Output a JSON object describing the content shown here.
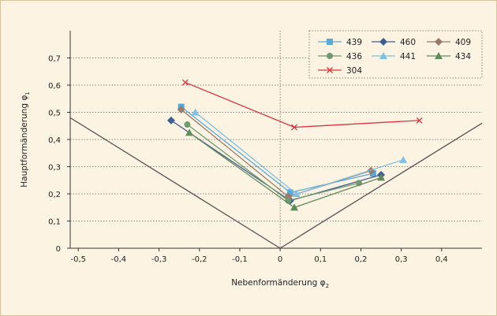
{
  "chart_data": {
    "type": "scatter",
    "title": "",
    "xlabel": {
      "main": "Nebenformänderung φ",
      "sub": "2"
    },
    "ylabel": {
      "main": "Hauptformänderung φ",
      "sub": "1"
    },
    "xlim": [
      -0.52,
      0.5
    ],
    "ylim": [
      0,
      0.8
    ],
    "x_ticks": [
      -0.5,
      -0.4,
      -0.3,
      -0.2,
      -0.1,
      0,
      0.1,
      0.2,
      0.3,
      0.4
    ],
    "x_tick_labels": [
      "-0,5",
      "-0,4",
      "-0,3",
      "-0,2",
      "-0,1",
      "0",
      "0,1",
      "0,2",
      "0,3",
      "0,4"
    ],
    "y_ticks": [
      0,
      0.1,
      0.2,
      0.3,
      0.4,
      0.5,
      0.6,
      0.7
    ],
    "y_tick_labels": [
      "0",
      "0,1",
      "0,2",
      "0,3",
      "0,4",
      "0,5",
      "0,6",
      "0,7"
    ],
    "grid": {
      "horizontal": true,
      "style": "dotted"
    },
    "legend_position": "top-right",
    "reference_lines": [
      {
        "points": [
          [
            -0.52,
            0.48
          ],
          [
            0,
            0
          ],
          [
            0.5,
            0.46
          ]
        ],
        "color": "#555555"
      }
    ],
    "series": [
      {
        "name": "439",
        "color": "#5aa9d6",
        "marker": "square",
        "points": [
          [
            -0.245,
            0.52
          ],
          [
            0.025,
            0.205
          ],
          [
            0.23,
            0.275
          ]
        ]
      },
      {
        "name": "460",
        "color": "#3f5f8f",
        "marker": "diamond",
        "points": [
          [
            -0.27,
            0.47
          ],
          [
            0.025,
            0.175
          ],
          [
            0.25,
            0.27
          ]
        ]
      },
      {
        "name": "409",
        "color": "#9a7a6a",
        "marker": "diamond",
        "points": [
          [
            -0.245,
            0.51
          ],
          [
            0.02,
            0.19
          ],
          [
            0.225,
            0.285
          ]
        ]
      },
      {
        "name": "436",
        "color": "#6f9a6f",
        "marker": "circle",
        "points": [
          [
            -0.23,
            0.455
          ],
          [
            0.02,
            0.175
          ],
          [
            0.195,
            0.24
          ]
        ]
      },
      {
        "name": "441",
        "color": "#7fc0e3",
        "marker": "triangle",
        "points": [
          [
            -0.21,
            0.5
          ],
          [
            0.04,
            0.2
          ],
          [
            0.305,
            0.325
          ]
        ]
      },
      {
        "name": "434",
        "color": "#5f8a5a",
        "marker": "triangle",
        "points": [
          [
            -0.225,
            0.425
          ],
          [
            0.035,
            0.15
          ],
          [
            0.25,
            0.26
          ]
        ]
      },
      {
        "name": "304",
        "color": "#d9353e",
        "marker": "x",
        "points": [
          [
            -0.235,
            0.61
          ],
          [
            0.035,
            0.445
          ],
          [
            0.345,
            0.47
          ]
        ]
      }
    ]
  }
}
